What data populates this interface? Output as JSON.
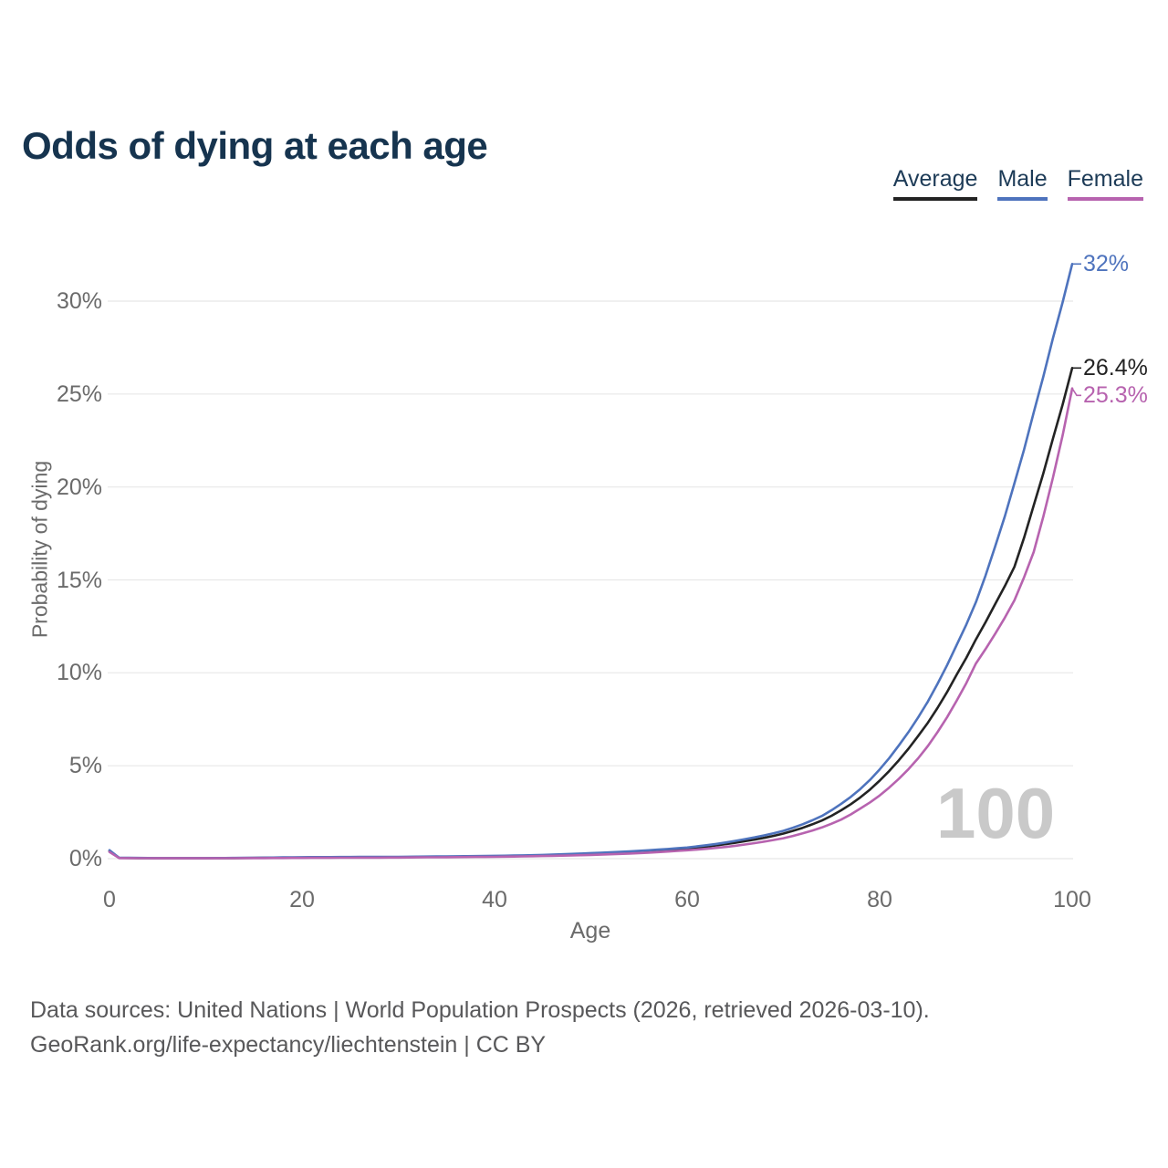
{
  "header": {
    "title": "Odds of dying at each age"
  },
  "legend": {
    "items": [
      {
        "label": "Average",
        "color": "#232323"
      },
      {
        "label": "Male",
        "color": "#4e73bd"
      },
      {
        "label": "Female",
        "color": "#b763af"
      }
    ]
  },
  "chart_data": {
    "type": "line",
    "title": "Odds of dying at each age",
    "xlabel": "Age",
    "ylabel": "Probability of dying",
    "xlim": [
      0,
      100
    ],
    "ylim": [
      0,
      32
    ],
    "grid": "horizontal",
    "legend_position": "top-right",
    "watermark": "100",
    "x_ticks": [
      {
        "v": 0,
        "label": "0"
      },
      {
        "v": 20,
        "label": "20"
      },
      {
        "v": 40,
        "label": "40"
      },
      {
        "v": 60,
        "label": "60"
      },
      {
        "v": 80,
        "label": "80"
      },
      {
        "v": 100,
        "label": "100"
      }
    ],
    "y_ticks": [
      {
        "v": 0,
        "label": "0%"
      },
      {
        "v": 5,
        "label": "5%"
      },
      {
        "v": 10,
        "label": "10%"
      },
      {
        "v": 15,
        "label": "15%"
      },
      {
        "v": 20,
        "label": "20%"
      },
      {
        "v": 25,
        "label": "25%"
      },
      {
        "v": 30,
        "label": "30%"
      }
    ],
    "series": [
      {
        "name": "Average",
        "color": "#232323",
        "end_label": "26.4%",
        "points": [
          [
            0,
            0.4
          ],
          [
            1,
            0.04
          ],
          [
            5,
            0.02
          ],
          [
            10,
            0.02
          ],
          [
            15,
            0.04
          ],
          [
            20,
            0.06
          ],
          [
            25,
            0.07
          ],
          [
            30,
            0.08
          ],
          [
            35,
            0.1
          ],
          [
            40,
            0.13
          ],
          [
            45,
            0.17
          ],
          [
            50,
            0.25
          ],
          [
            55,
            0.38
          ],
          [
            60,
            0.55
          ],
          [
            62,
            0.65
          ],
          [
            64,
            0.78
          ],
          [
            66,
            0.94
          ],
          [
            68,
            1.12
          ],
          [
            70,
            1.35
          ],
          [
            72,
            1.66
          ],
          [
            74,
            2.05
          ],
          [
            76,
            2.6
          ],
          [
            78,
            3.3
          ],
          [
            80,
            4.2
          ],
          [
            82,
            5.3
          ],
          [
            84,
            6.6
          ],
          [
            86,
            8.1
          ],
          [
            88,
            9.9
          ],
          [
            90,
            11.8
          ],
          [
            92,
            13.7
          ],
          [
            94,
            15.7
          ],
          [
            96,
            19.0
          ],
          [
            98,
            22.6
          ],
          [
            100,
            26.4
          ]
        ]
      },
      {
        "name": "Male",
        "color": "#4e73bd",
        "end_label": "32%",
        "points": [
          [
            0,
            0.45
          ],
          [
            1,
            0.05
          ],
          [
            5,
            0.03
          ],
          [
            10,
            0.03
          ],
          [
            15,
            0.05
          ],
          [
            20,
            0.08
          ],
          [
            25,
            0.09
          ],
          [
            30,
            0.1
          ],
          [
            35,
            0.12
          ],
          [
            40,
            0.15
          ],
          [
            45,
            0.2
          ],
          [
            50,
            0.3
          ],
          [
            55,
            0.42
          ],
          [
            60,
            0.6
          ],
          [
            62,
            0.72
          ],
          [
            64,
            0.87
          ],
          [
            66,
            1.05
          ],
          [
            68,
            1.25
          ],
          [
            70,
            1.5
          ],
          [
            72,
            1.85
          ],
          [
            74,
            2.3
          ],
          [
            76,
            2.95
          ],
          [
            78,
            3.75
          ],
          [
            80,
            4.8
          ],
          [
            82,
            6.1
          ],
          [
            84,
            7.6
          ],
          [
            86,
            9.4
          ],
          [
            88,
            11.5
          ],
          [
            90,
            13.8
          ],
          [
            92,
            16.8
          ],
          [
            94,
            20.2
          ],
          [
            96,
            24.0
          ],
          [
            98,
            28.0
          ],
          [
            100,
            32.0
          ]
        ]
      },
      {
        "name": "Female",
        "color": "#b763af",
        "end_label": "25.3%",
        "points": [
          [
            0,
            0.36
          ],
          [
            1,
            0.03
          ],
          [
            5,
            0.02
          ],
          [
            10,
            0.02
          ],
          [
            15,
            0.03
          ],
          [
            20,
            0.04
          ],
          [
            25,
            0.05
          ],
          [
            30,
            0.06
          ],
          [
            35,
            0.08
          ],
          [
            40,
            0.1
          ],
          [
            45,
            0.14
          ],
          [
            50,
            0.2
          ],
          [
            55,
            0.3
          ],
          [
            60,
            0.45
          ],
          [
            62,
            0.53
          ],
          [
            64,
            0.63
          ],
          [
            66,
            0.76
          ],
          [
            68,
            0.92
          ],
          [
            70,
            1.1
          ],
          [
            72,
            1.36
          ],
          [
            74,
            1.68
          ],
          [
            76,
            2.1
          ],
          [
            78,
            2.7
          ],
          [
            80,
            3.4
          ],
          [
            82,
            4.3
          ],
          [
            84,
            5.4
          ],
          [
            86,
            6.8
          ],
          [
            88,
            8.5
          ],
          [
            90,
            10.5
          ],
          [
            92,
            12.1
          ],
          [
            94,
            13.9
          ],
          [
            96,
            16.5
          ],
          [
            98,
            20.5
          ],
          [
            100,
            25.3
          ]
        ]
      }
    ]
  },
  "footer": {
    "line1": "Data sources: United Nations | World Population Prospects (2026, retrieved 2026-03-10).",
    "line2": "GeoRank.org/life-expectancy/liechtenstein | CC BY"
  }
}
